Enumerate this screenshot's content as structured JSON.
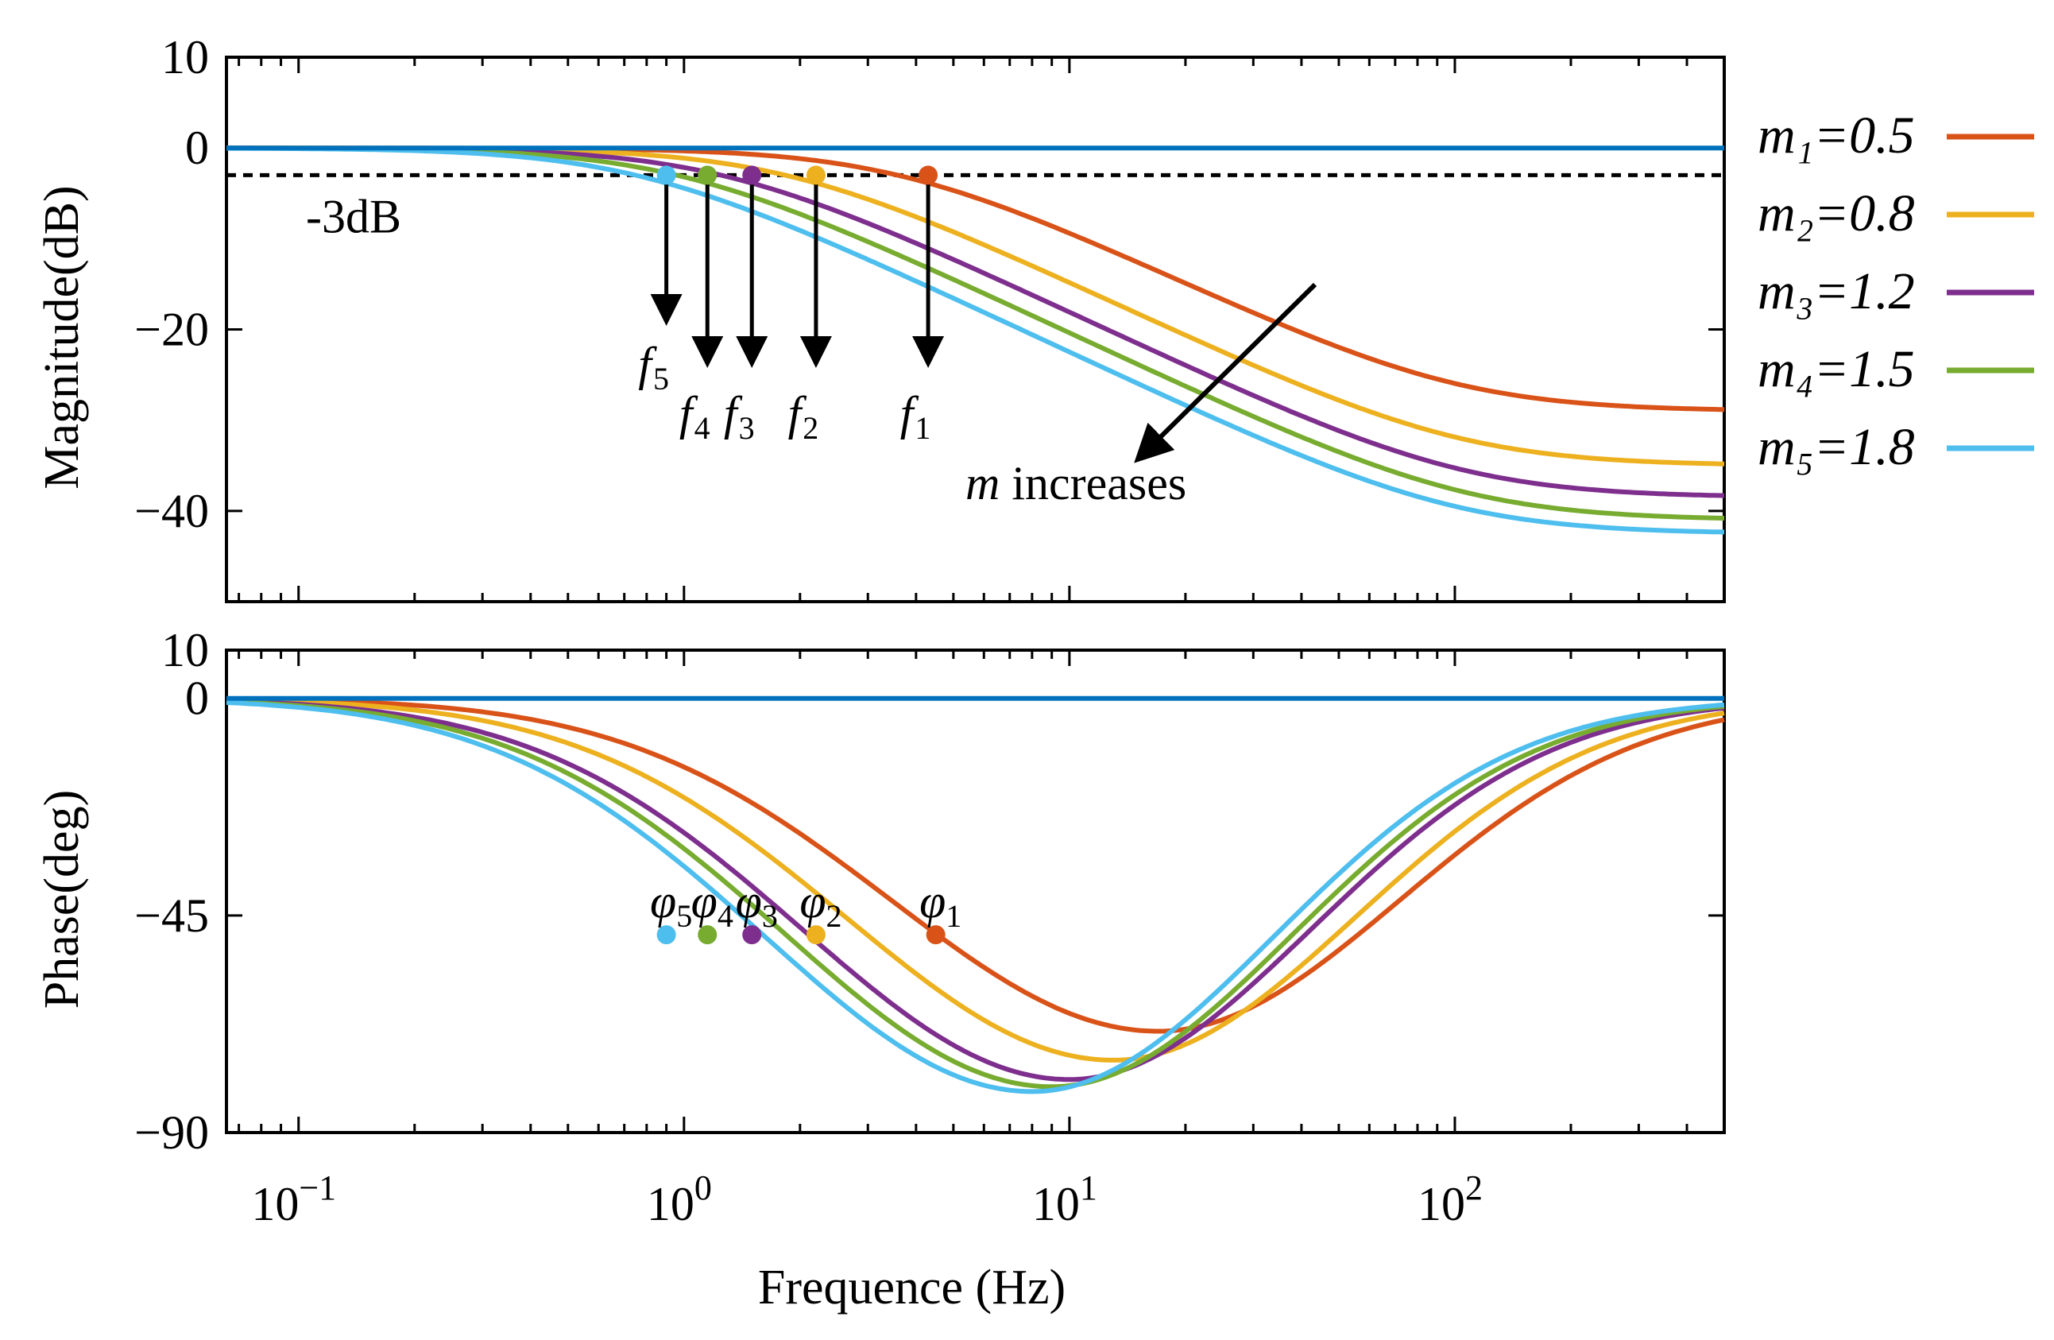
{
  "chart_data": [
    {
      "type": "line",
      "panel": "magnitude",
      "ylabel": "Magnitude(dB)",
      "xscale": "log",
      "xlim": [
        0.065,
        500
      ],
      "ylim": [
        -50,
        10
      ],
      "yticks": [
        10,
        0,
        -20,
        -40
      ],
      "ytick_labels": [
        "10",
        "0",
        "−20",
        "−40"
      ],
      "reference_line": {
        "value": -3,
        "label": "-3dB",
        "style": "dashed"
      },
      "series": [
        {
          "name": "m1=0.5",
          "color": "#d95319",
          "corner_hz": 4.3,
          "high_freq_db": -29
        },
        {
          "name": "m2=0.8",
          "color": "#edb120",
          "corner_hz": 2.2,
          "high_freq_db": -35
        },
        {
          "name": "m3=1.2",
          "color": "#7e2f8e",
          "corner_hz": 1.5,
          "high_freq_db": -38.5
        },
        {
          "name": "m4=1.5",
          "color": "#77ac30",
          "corner_hz": 1.15,
          "high_freq_db": -41
        },
        {
          "name": "m5=1.8",
          "color": "#4dbeee",
          "corner_hz": 0.9,
          "high_freq_db": -42.5
        },
        {
          "name": "reference",
          "color": "#0072bd",
          "constant_db": 0
        }
      ],
      "markers": [
        {
          "label": "f",
          "sub": "1",
          "x": 4.3,
          "y": -3
        },
        {
          "label": "f",
          "sub": "2",
          "x": 2.2,
          "y": -3
        },
        {
          "label": "f",
          "sub": "3",
          "x": 1.5,
          "y": -3
        },
        {
          "label": "f",
          "sub": "4",
          "x": 1.15,
          "y": -3
        },
        {
          "label": "f",
          "sub": "5",
          "x": 0.9,
          "y": -3
        }
      ],
      "annotation": {
        "italic": "m",
        "text": " increases"
      }
    },
    {
      "type": "line",
      "panel": "phase",
      "ylabel": "Phase(deg)",
      "xlabel": "Frequence (Hz)",
      "xscale": "log",
      "xlim": [
        0.065,
        500
      ],
      "ylim": [
        -90,
        10
      ],
      "yticks": [
        10,
        0,
        -45,
        -90
      ],
      "ytick_labels": [
        "10",
        "0",
        "−45",
        "−90"
      ],
      "xticks": [
        0.1,
        1,
        10,
        100
      ],
      "xtick_bases": [
        "10",
        "10",
        "10",
        "10"
      ],
      "xtick_exps": [
        "−1",
        "0",
        "1",
        "2"
      ],
      "series": [
        {
          "name": "m1=0.5",
          "color": "#d95319",
          "min_deg": -69,
          "min_at_hz": 17
        },
        {
          "name": "m2=0.8",
          "color": "#edb120",
          "min_deg": -75,
          "min_at_hz": 13
        },
        {
          "name": "m3=1.2",
          "color": "#7e2f8e",
          "min_deg": -79,
          "min_at_hz": 10
        },
        {
          "name": "m4=1.5",
          "color": "#77ac30",
          "min_deg": -80.5,
          "min_at_hz": 9
        },
        {
          "name": "m5=1.8",
          "color": "#4dbeee",
          "min_deg": -81.5,
          "min_at_hz": 8
        },
        {
          "name": "reference",
          "color": "#0072bd",
          "constant_deg": 0
        }
      ],
      "markers": [
        {
          "label": "φ",
          "sub": "1",
          "x": 4.5,
          "y": -49
        },
        {
          "label": "φ",
          "sub": "2",
          "x": 2.2,
          "y": -49
        },
        {
          "label": "φ",
          "sub": "3",
          "x": 1.5,
          "y": -49
        },
        {
          "label": "φ",
          "sub": "4",
          "x": 1.15,
          "y": -49
        },
        {
          "label": "φ",
          "sub": "5",
          "x": 0.9,
          "y": -49
        }
      ]
    }
  ],
  "legend": [
    {
      "label": "m₁=0.5",
      "color": "#d95319"
    },
    {
      "label": "m₂=0.8",
      "color": "#edb120"
    },
    {
      "label": "m₃=1.2",
      "color": "#7e2f8e"
    },
    {
      "label": "m₄=1.5",
      "color": "#77ac30"
    },
    {
      "label": "m₅=1.8",
      "color": "#4dbeee"
    }
  ]
}
